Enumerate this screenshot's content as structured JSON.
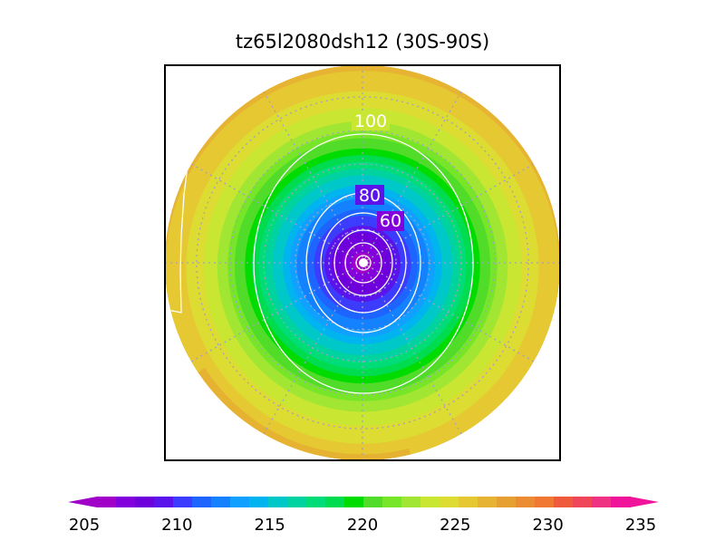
{
  "chart_data": {
    "type": "heatmap",
    "projection": "south-polar-stereographic",
    "title": "tz65l2080dsh12 (30S-90S)",
    "lat_range": [
      "30S",
      "90S"
    ],
    "contour_labels": [
      "100",
      "80",
      "60"
    ],
    "contour_label_color": "#ffffff",
    "colorbar": {
      "min": 205,
      "max": 235,
      "tick_labels": [
        "205",
        "210",
        "215",
        "220",
        "225",
        "230",
        "235"
      ],
      "extend": "both",
      "colors": [
        "#a000c8",
        "#8200dc",
        "#6e00dc",
        "#5a14eb",
        "#3c3cff",
        "#1e64ff",
        "#1482ff",
        "#10a0ff",
        "#00b4f0",
        "#00c8c8",
        "#00d2a0",
        "#00dc78",
        "#00dc50",
        "#00dc00",
        "#50dc28",
        "#78e628",
        "#a0e632",
        "#c8e632",
        "#dcdc32",
        "#e6c832",
        "#e6b432",
        "#e6a032",
        "#eb8c32",
        "#f07832",
        "#f05a3c",
        "#f0465a",
        "#f03282",
        "#f0149b"
      ]
    },
    "grid": true,
    "background_field": {
      "pole_value": 205,
      "radial_profile": [
        [
          0,
          205
        ],
        [
          0.15,
          208
        ],
        [
          0.3,
          212
        ],
        [
          0.45,
          216
        ],
        [
          0.55,
          219
        ],
        [
          0.65,
          222
        ],
        [
          0.75,
          224
        ],
        [
          0.87,
          225.5
        ],
        [
          1.0,
          227
        ]
      ]
    }
  }
}
